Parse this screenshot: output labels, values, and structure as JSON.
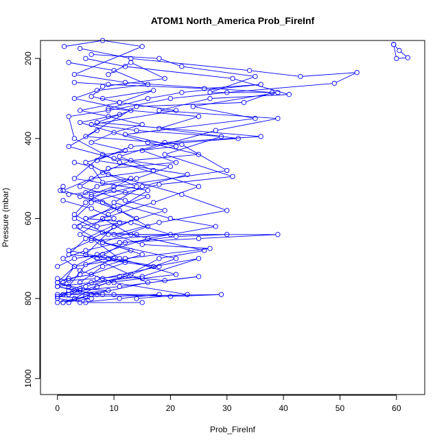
{
  "chart_data": {
    "type": "line",
    "title": "ATOM1 North_America Prob_FireInf",
    "xlabel": "Prob_FireInf",
    "ylabel": "Pressure (mbar)",
    "xlim": [
      -3,
      65
    ],
    "ylim": [
      1040,
      155
    ],
    "y_reversed": true,
    "grid": false,
    "legend": "none",
    "series_color": "#0000ff",
    "marker": "open-circle",
    "x_ticks": [
      0,
      10,
      20,
      30,
      40,
      50,
      60
    ],
    "y_ticks": [
      200,
      400,
      600,
      800,
      1000
    ],
    "series": [
      {
        "points": [
          [
            59.5,
            165
          ],
          [
            60,
            200
          ],
          [
            62,
            198
          ],
          [
            60.5,
            180
          ],
          [
            59.5,
            165
          ]
        ]
      },
      {
        "points": [
          [
            1.2,
            170
          ],
          [
            8,
            155
          ],
          [
            15,
            170
          ],
          [
            3,
            240
          ],
          [
            12,
            260
          ],
          [
            38,
            285
          ],
          [
            33,
            310
          ],
          [
            14,
            320
          ],
          [
            5,
            395
          ],
          [
            22,
            415
          ],
          [
            30,
            480
          ],
          [
            10,
            520
          ],
          [
            6,
            540
          ]
        ]
      },
      {
        "points": [
          [
            4,
            175
          ],
          [
            13,
            200
          ],
          [
            34,
            230
          ],
          [
            43,
            245
          ],
          [
            53,
            235
          ],
          [
            49,
            262
          ],
          [
            30,
            285
          ],
          [
            20,
            300
          ],
          [
            9,
            330
          ],
          [
            2,
            345
          ],
          [
            3,
            400
          ],
          [
            11,
            460
          ],
          [
            25,
            520
          ],
          [
            17,
            560
          ],
          [
            8,
            600
          ],
          [
            13,
            640
          ],
          [
            26,
            680
          ],
          [
            18,
            700
          ],
          [
            12,
            745
          ],
          [
            7,
            770
          ],
          [
            3,
            800
          ]
        ]
      },
      {
        "points": [
          [
            6,
            190
          ],
          [
            18,
            200
          ],
          [
            22,
            220
          ],
          [
            35,
            245
          ],
          [
            27,
            285
          ],
          [
            39,
            285
          ],
          [
            24,
            320
          ],
          [
            35,
            350
          ],
          [
            12,
            390
          ],
          [
            21,
            420
          ],
          [
            8,
            440
          ],
          [
            3,
            500
          ],
          [
            16,
            530
          ],
          [
            9,
            590
          ],
          [
            4,
            640
          ],
          [
            15,
            690
          ],
          [
            8,
            720
          ],
          [
            4,
            760
          ]
        ]
      },
      {
        "points": [
          [
            2,
            210
          ],
          [
            10,
            230
          ],
          [
            16,
            265
          ],
          [
            7,
            280
          ],
          [
            3,
            300
          ],
          [
            13,
            330
          ],
          [
            7,
            360
          ],
          [
            36,
            395
          ],
          [
            19,
            410
          ],
          [
            11,
            445
          ],
          [
            17,
            480
          ],
          [
            6,
            500
          ],
          [
            1,
            530
          ],
          [
            8,
            560
          ],
          [
            14,
            600
          ],
          [
            6,
            650
          ],
          [
            11,
            700
          ],
          [
            21,
            740
          ],
          [
            9,
            760
          ],
          [
            2,
            790
          ]
        ]
      },
      {
        "points": [
          [
            5,
            200
          ],
          [
            12,
            220
          ],
          [
            31,
            250
          ],
          [
            41,
            290
          ],
          [
            27,
            300
          ],
          [
            18,
            330
          ],
          [
            39,
            350
          ],
          [
            28,
            380
          ],
          [
            15,
            430
          ],
          [
            21,
            460
          ],
          [
            9,
            475
          ],
          [
            4,
            520
          ],
          [
            12,
            555
          ],
          [
            19,
            580
          ],
          [
            10,
            620
          ],
          [
            5,
            690
          ],
          [
            16,
            760
          ],
          [
            6,
            790
          ],
          [
            1,
            810
          ]
        ]
      },
      {
        "points": [
          [
            3,
            260
          ],
          [
            9,
            265
          ],
          [
            26,
            275
          ],
          [
            36,
            265
          ],
          [
            22,
            285
          ],
          [
            16,
            300
          ],
          [
            9,
            325
          ],
          [
            25,
            345
          ],
          [
            18,
            375
          ],
          [
            32,
            400
          ],
          [
            13,
            420
          ],
          [
            7,
            455
          ],
          [
            23,
            490
          ],
          [
            15,
            520
          ],
          [
            10,
            560
          ],
          [
            20,
            600
          ],
          [
            28,
            620
          ],
          [
            16,
            650
          ],
          [
            7,
            690
          ],
          [
            3,
            720
          ],
          [
            1,
            760
          ]
        ]
      },
      {
        "points": [
          [
            8,
            300
          ],
          [
            17,
            280
          ],
          [
            11,
            310
          ],
          [
            21,
            330
          ],
          [
            6,
            365
          ],
          [
            14,
            380
          ],
          [
            29,
            395
          ],
          [
            19,
            440
          ],
          [
            31,
            495
          ],
          [
            18,
            515
          ],
          [
            12,
            535
          ],
          [
            6,
            560
          ],
          [
            3,
            600
          ],
          [
            9,
            640
          ],
          [
            39,
            640
          ],
          [
            25,
            650
          ],
          [
            11,
            660
          ],
          [
            5,
            680
          ],
          [
            1,
            700
          ],
          [
            4,
            730
          ],
          [
            10,
            760
          ],
          [
            23,
            790
          ],
          [
            14,
            800
          ]
        ]
      },
      {
        "points": [
          [
            11,
            340
          ],
          [
            4,
            360
          ],
          [
            16,
            410
          ],
          [
            25,
            440
          ],
          [
            13,
            455
          ],
          [
            8,
            485
          ],
          [
            22,
            540
          ],
          [
            30,
            580
          ],
          [
            18,
            610
          ],
          [
            10,
            640
          ],
          [
            15,
            665
          ],
          [
            27,
            675
          ],
          [
            12,
            700
          ],
          [
            3,
            720
          ],
          [
            0,
            760
          ],
          [
            6,
            790
          ],
          [
            2,
            810
          ]
        ]
      },
      {
        "points": [
          [
            7,
            380
          ],
          [
            2,
            420
          ],
          [
            10,
            450
          ],
          [
            20,
            470
          ],
          [
            14,
            500
          ],
          [
            7,
            520
          ],
          [
            4,
            545
          ],
          [
            11,
            580
          ],
          [
            16,
            620
          ],
          [
            8,
            660
          ],
          [
            21,
            700
          ],
          [
            13,
            740
          ],
          [
            5,
            770
          ],
          [
            1,
            790
          ]
        ]
      },
      {
        "points": [
          [
            1,
            520
          ],
          [
            0.5,
            530
          ],
          [
            2,
            540
          ],
          [
            5,
            535
          ],
          [
            10,
            530
          ],
          [
            16,
            545
          ],
          [
            5,
            600
          ],
          [
            13,
            610
          ],
          [
            20,
            640
          ],
          [
            6,
            655
          ],
          [
            2,
            680
          ],
          [
            9,
            700
          ],
          [
            18,
            720
          ],
          [
            8,
            750
          ],
          [
            2,
            780
          ],
          [
            0,
            800
          ],
          [
            5,
            810
          ],
          [
            15,
            810
          ]
        ]
      },
      {
        "points": [
          [
            1,
            555
          ],
          [
            6,
            575
          ],
          [
            10,
            600
          ],
          [
            4,
            620
          ],
          [
            8,
            635
          ],
          [
            14,
            640
          ],
          [
            30,
            640
          ],
          [
            21,
            645
          ],
          [
            12,
            660
          ],
          [
            7,
            700
          ],
          [
            17,
            720
          ],
          [
            25,
            700
          ],
          [
            15,
            745
          ],
          [
            6,
            760
          ],
          [
            0,
            770
          ],
          [
            3,
            780
          ],
          [
            8,
            790
          ],
          [
            18,
            790
          ],
          [
            11,
            800
          ],
          [
            4,
            810
          ]
        ]
      },
      {
        "points": [
          [
            0,
            720
          ],
          [
            3,
            700
          ],
          [
            8,
            690
          ],
          [
            12,
            710
          ],
          [
            6,
            740
          ],
          [
            2,
            750
          ],
          [
            0,
            760
          ],
          [
            4,
            775
          ],
          [
            9,
            780
          ],
          [
            2,
            790
          ],
          [
            0,
            795
          ],
          [
            6,
            800
          ],
          [
            1,
            810
          ]
        ]
      },
      {
        "points": [
          [
            0,
            750
          ],
          [
            2,
            755
          ],
          [
            7,
            750
          ],
          [
            11,
            745
          ],
          [
            15,
            750
          ],
          [
            19,
            755
          ],
          [
            25,
            745
          ],
          [
            11,
            770
          ],
          [
            4,
            780
          ],
          [
            0,
            790
          ],
          [
            10,
            790
          ],
          [
            20,
            795
          ],
          [
            29,
            790
          ],
          [
            5,
            795
          ],
          [
            0,
            810
          ]
        ]
      },
      {
        "points": [
          [
            3,
            460
          ],
          [
            6,
            470
          ],
          [
            8,
            510
          ],
          [
            13,
            500
          ],
          [
            5,
            560
          ],
          [
            3,
            590
          ],
          [
            7,
            620
          ],
          [
            11,
            610
          ],
          [
            5,
            650
          ],
          [
            2,
            690
          ],
          [
            10,
            700
          ],
          [
            4,
            740
          ],
          [
            0,
            770
          ],
          [
            7,
            790
          ]
        ]
      },
      {
        "points": [
          [
            9,
            240
          ],
          [
            13,
            210
          ],
          [
            19,
            250
          ],
          [
            8,
            270
          ],
          [
            6,
            295
          ],
          [
            11,
            310
          ],
          [
            4,
            330
          ],
          [
            9,
            345
          ],
          [
            15,
            365
          ],
          [
            10,
            385
          ],
          [
            6,
            410
          ],
          [
            12,
            430
          ],
          [
            5,
            460
          ],
          [
            9,
            490
          ],
          [
            14,
            520
          ],
          [
            6,
            545
          ],
          [
            10,
            570
          ],
          [
            3,
            620
          ],
          [
            8,
            660
          ],
          [
            13,
            680
          ],
          [
            5,
            715
          ],
          [
            2,
            770
          ]
        ]
      }
    ]
  }
}
